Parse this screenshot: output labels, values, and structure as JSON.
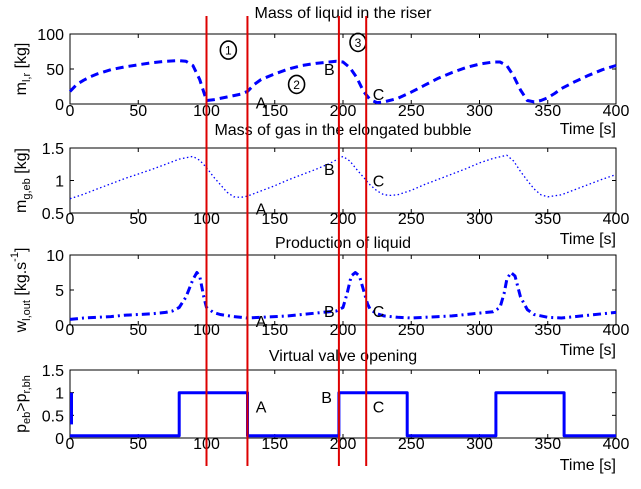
{
  "chart_data": [
    {
      "type": "line",
      "title": "Mass of liquid in the riser",
      "xlabel": "Time [s]",
      "ylabel": "m",
      "ylabel_sub": "l,r",
      "ylabel_unit": " [kg]",
      "xlim": [
        0,
        400
      ],
      "ylim": [
        0,
        100
      ],
      "xticks": [
        "0",
        "50",
        "100",
        "150",
        "200",
        "250",
        "300",
        "350",
        "400"
      ],
      "yticks": [
        "0",
        "50",
        "100"
      ],
      "ytick_values": [
        0,
        50,
        100
      ],
      "line_style": "dashed",
      "series": [
        {
          "x": [
            0,
            5,
            10,
            15,
            20,
            25,
            30,
            40,
            50,
            60,
            70,
            80,
            85,
            90,
            95,
            100,
            105,
            110,
            115,
            120,
            125,
            130,
            135,
            140,
            150,
            160,
            170,
            180,
            190,
            195,
            200,
            205,
            210,
            215,
            220,
            225,
            230,
            240,
            250,
            260,
            270,
            280,
            290,
            300,
            310,
            315,
            320,
            325,
            330,
            335,
            340,
            345,
            350,
            355,
            360,
            370,
            380,
            390,
            400
          ],
          "y": [
            18,
            28,
            34,
            39,
            43,
            46,
            49,
            53,
            56,
            59,
            61,
            62,
            61,
            55,
            35,
            5,
            6,
            8,
            10,
            12,
            14,
            18,
            28,
            35,
            43,
            50,
            55,
            58,
            60,
            61,
            60,
            52,
            38,
            18,
            6,
            2,
            3,
            8,
            17,
            27,
            37,
            45,
            52,
            57,
            60,
            60,
            55,
            40,
            20,
            5,
            3,
            5,
            9,
            15,
            22,
            32,
            41,
            49,
            55
          ]
        }
      ],
      "annotations": [
        {
          "text": "1",
          "x": 116,
          "y": 77,
          "circled": true
        },
        {
          "text": "A",
          "x": 140,
          "y": 2
        },
        {
          "text": "2",
          "x": 166,
          "y": 28,
          "circled": true
        },
        {
          "text": "B",
          "x": 190,
          "y": 50
        },
        {
          "text": "3",
          "x": 211,
          "y": 88,
          "circled": true
        },
        {
          "text": "C",
          "x": 226,
          "y": 14
        }
      ]
    },
    {
      "type": "line",
      "title": "Mass of gas in the elongated bubble",
      "xlabel": "Time [s]",
      "ylabel": "m",
      "ylabel_sub": "g,eb",
      "ylabel_unit": " [kg]",
      "xlim": [
        0,
        400
      ],
      "ylim": [
        0.5,
        1.5
      ],
      "xticks": [
        "0",
        "50",
        "100",
        "150",
        "200",
        "250",
        "300",
        "350",
        "400"
      ],
      "yticks": [
        "0.5",
        "1",
        "1.5"
      ],
      "ytick_values": [
        0.5,
        1,
        1.5
      ],
      "line_style": "dotted",
      "series": [
        {
          "x": [
            0,
            10,
            20,
            30,
            40,
            50,
            60,
            70,
            80,
            90,
            95,
            100,
            105,
            110,
            115,
            120,
            125,
            130,
            140,
            150,
            160,
            170,
            180,
            190,
            200,
            205,
            210,
            215,
            220,
            225,
            230,
            235,
            240,
            250,
            260,
            270,
            280,
            290,
            300,
            310,
            320,
            325,
            330,
            335,
            340,
            345,
            350,
            360,
            370,
            380,
            390,
            400
          ],
          "y": [
            0.72,
            0.79,
            0.87,
            0.95,
            1.03,
            1.1,
            1.17,
            1.25,
            1.33,
            1.37,
            1.31,
            1.2,
            1.06,
            0.94,
            0.82,
            0.75,
            0.74,
            0.76,
            0.84,
            0.92,
            1.01,
            1.09,
            1.17,
            1.26,
            1.37,
            1.3,
            1.17,
            1.05,
            0.93,
            0.84,
            0.78,
            0.77,
            0.78,
            0.85,
            0.94,
            1.02,
            1.1,
            1.18,
            1.27,
            1.34,
            1.39,
            1.3,
            1.14,
            1.0,
            0.87,
            0.78,
            0.75,
            0.78,
            0.86,
            0.94,
            1.02,
            1.09
          ]
        }
      ],
      "annotations": [
        {
          "text": "A",
          "x": 140,
          "y": 0.57
        },
        {
          "text": "B",
          "x": 190,
          "y": 1.18
        },
        {
          "text": "C",
          "x": 226,
          "y": 1.0
        }
      ]
    },
    {
      "type": "line",
      "title": "Production of liquid",
      "xlabel": "Time [s]",
      "ylabel": "w",
      "ylabel_sub": "l,out",
      "ylabel_unit": " [kg.s",
      "ylabel_sup": "-1",
      "ylabel_end": "]",
      "xlim": [
        0,
        400
      ],
      "ylim": [
        0,
        10
      ],
      "xticks": [
        "0",
        "50",
        "100",
        "150",
        "200",
        "250",
        "300",
        "350",
        "400"
      ],
      "yticks": [
        "0",
        "5",
        "10"
      ],
      "ytick_values": [
        0,
        5,
        10
      ],
      "line_style": "dashdot",
      "series": [
        {
          "x": [
            0,
            10,
            20,
            30,
            40,
            50,
            60,
            70,
            75,
            80,
            85,
            90,
            93,
            95,
            98,
            100,
            105,
            110,
            120,
            130,
            140,
            150,
            160,
            170,
            180,
            190,
            195,
            200,
            203,
            206,
            209,
            212,
            215,
            218,
            220,
            225,
            230,
            240,
            250,
            260,
            270,
            280,
            290,
            300,
            310,
            315,
            318,
            320,
            323,
            326,
            330,
            335,
            340,
            350,
            360,
            370,
            380,
            390,
            400
          ],
          "y": [
            0.8,
            1.0,
            1.1,
            1.2,
            1.4,
            1.5,
            1.6,
            1.8,
            2.0,
            2.5,
            4.0,
            6.5,
            7.5,
            7.0,
            4.0,
            2.5,
            1.8,
            1.5,
            1.2,
            1.0,
            1.1,
            1.2,
            1.3,
            1.5,
            1.7,
            1.9,
            2.0,
            2.5,
            4.5,
            7.0,
            7.5,
            7.0,
            5.0,
            3.0,
            2.2,
            1.6,
            1.3,
            1.1,
            1.0,
            1.1,
            1.2,
            1.3,
            1.5,
            1.7,
            1.9,
            2.5,
            4.5,
            6.5,
            7.5,
            7.0,
            4.0,
            2.2,
            1.5,
            1.1,
            1.0,
            1.2,
            1.4,
            1.6,
            1.8
          ]
        }
      ],
      "annotations": [
        {
          "text": "A",
          "x": 140,
          "y": 0.6
        },
        {
          "text": "B",
          "x": 190,
          "y": 2.0
        },
        {
          "text": "C",
          "x": 226,
          "y": 2.0
        }
      ]
    },
    {
      "type": "line",
      "title": "Virtual valve opening",
      "xlabel": "Time [s]",
      "ylabel": "p",
      "ylabel_sub": "eb",
      "ylabel_mid": ">p",
      "ylabel_sub2": "r,bh",
      "xlim": [
        0,
        400
      ],
      "ylim": [
        0,
        1.5
      ],
      "xticks": [
        "0",
        "50",
        "100",
        "150",
        "200",
        "250",
        "300",
        "350",
        "400"
      ],
      "yticks": [
        "0",
        "0.5",
        "1",
        "1.5"
      ],
      "ytick_values": [
        0,
        0.5,
        1,
        1.5
      ],
      "line_style": "solid",
      "series": [
        {
          "x": [
            0,
            80,
            80,
            130,
            130,
            197,
            197,
            247,
            247,
            312,
            312,
            362,
            362,
            400
          ],
          "y": [
            0.05,
            0.05,
            1,
            1,
            0.05,
            0.05,
            1,
            1,
            0.05,
            0.05,
            1,
            1,
            0.05,
            0.05
          ]
        }
      ],
      "start_marker": {
        "x": 0,
        "y": 1
      },
      "annotations": [
        {
          "text": "A",
          "x": 140,
          "y": 0.7
        },
        {
          "text": "B",
          "x": 188,
          "y": 0.9
        },
        {
          "text": "C",
          "x": 226,
          "y": 0.7
        }
      ]
    }
  ],
  "event_lines": [
    {
      "label": "1",
      "x": 100
    },
    {
      "label": "A",
      "x": 130
    },
    {
      "label": "B",
      "x": 197
    },
    {
      "label": "C",
      "x": 217
    }
  ],
  "colors": {
    "series": "#0000ff",
    "event_lines": "#dd0000",
    "axes": "#000000"
  }
}
